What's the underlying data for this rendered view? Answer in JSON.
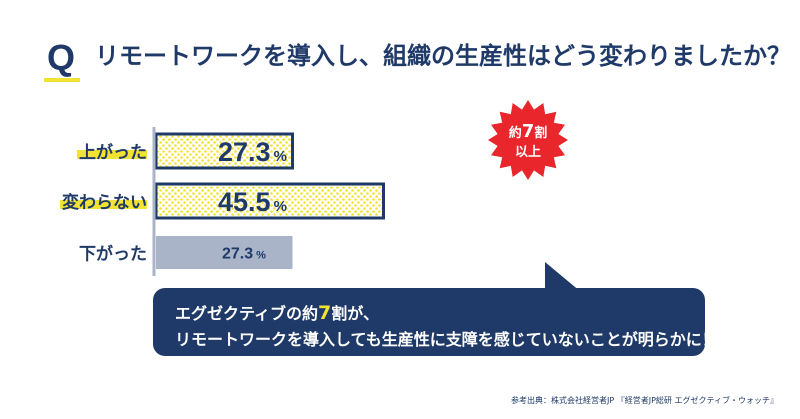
{
  "header": {
    "q_mark": "Q",
    "question": "リモートワークを導入し、組織の生産性はどう変わりましたか？"
  },
  "chart_data": {
    "type": "bar",
    "orientation": "horizontal",
    "categories": [
      "上がった",
      "変わらない",
      "下がった"
    ],
    "values": [
      27.3,
      45.5,
      27.3
    ],
    "value_labels": [
      "27.3",
      "45.5",
      "27.3"
    ],
    "unit": "%",
    "highlighted": [
      true,
      true,
      false
    ],
    "highlight_color": "#f2e233",
    "bar_dot_color": "#f2e233",
    "bar_border_color": "#1f3a68",
    "muted_bar_color": "#a9b4c9",
    "xlim": [
      0,
      100
    ],
    "grid": false,
    "legend": "none"
  },
  "badge": {
    "line1_prefix": "約",
    "line1_number": "7",
    "line1_suffix": "割",
    "line2": "以上",
    "color": "#e8262b"
  },
  "callout": {
    "line1_prefix": "エグゼクティブの約",
    "line1_number": "7",
    "line1_suffix": "割が、",
    "line2": "リモートワークを導入しても生産性に支障を感じていないことが明らかに！"
  },
  "source": "参考出典：株式会社経営者JP 『経営者JP総研 エグゼクティブ・ウォッチ』"
}
